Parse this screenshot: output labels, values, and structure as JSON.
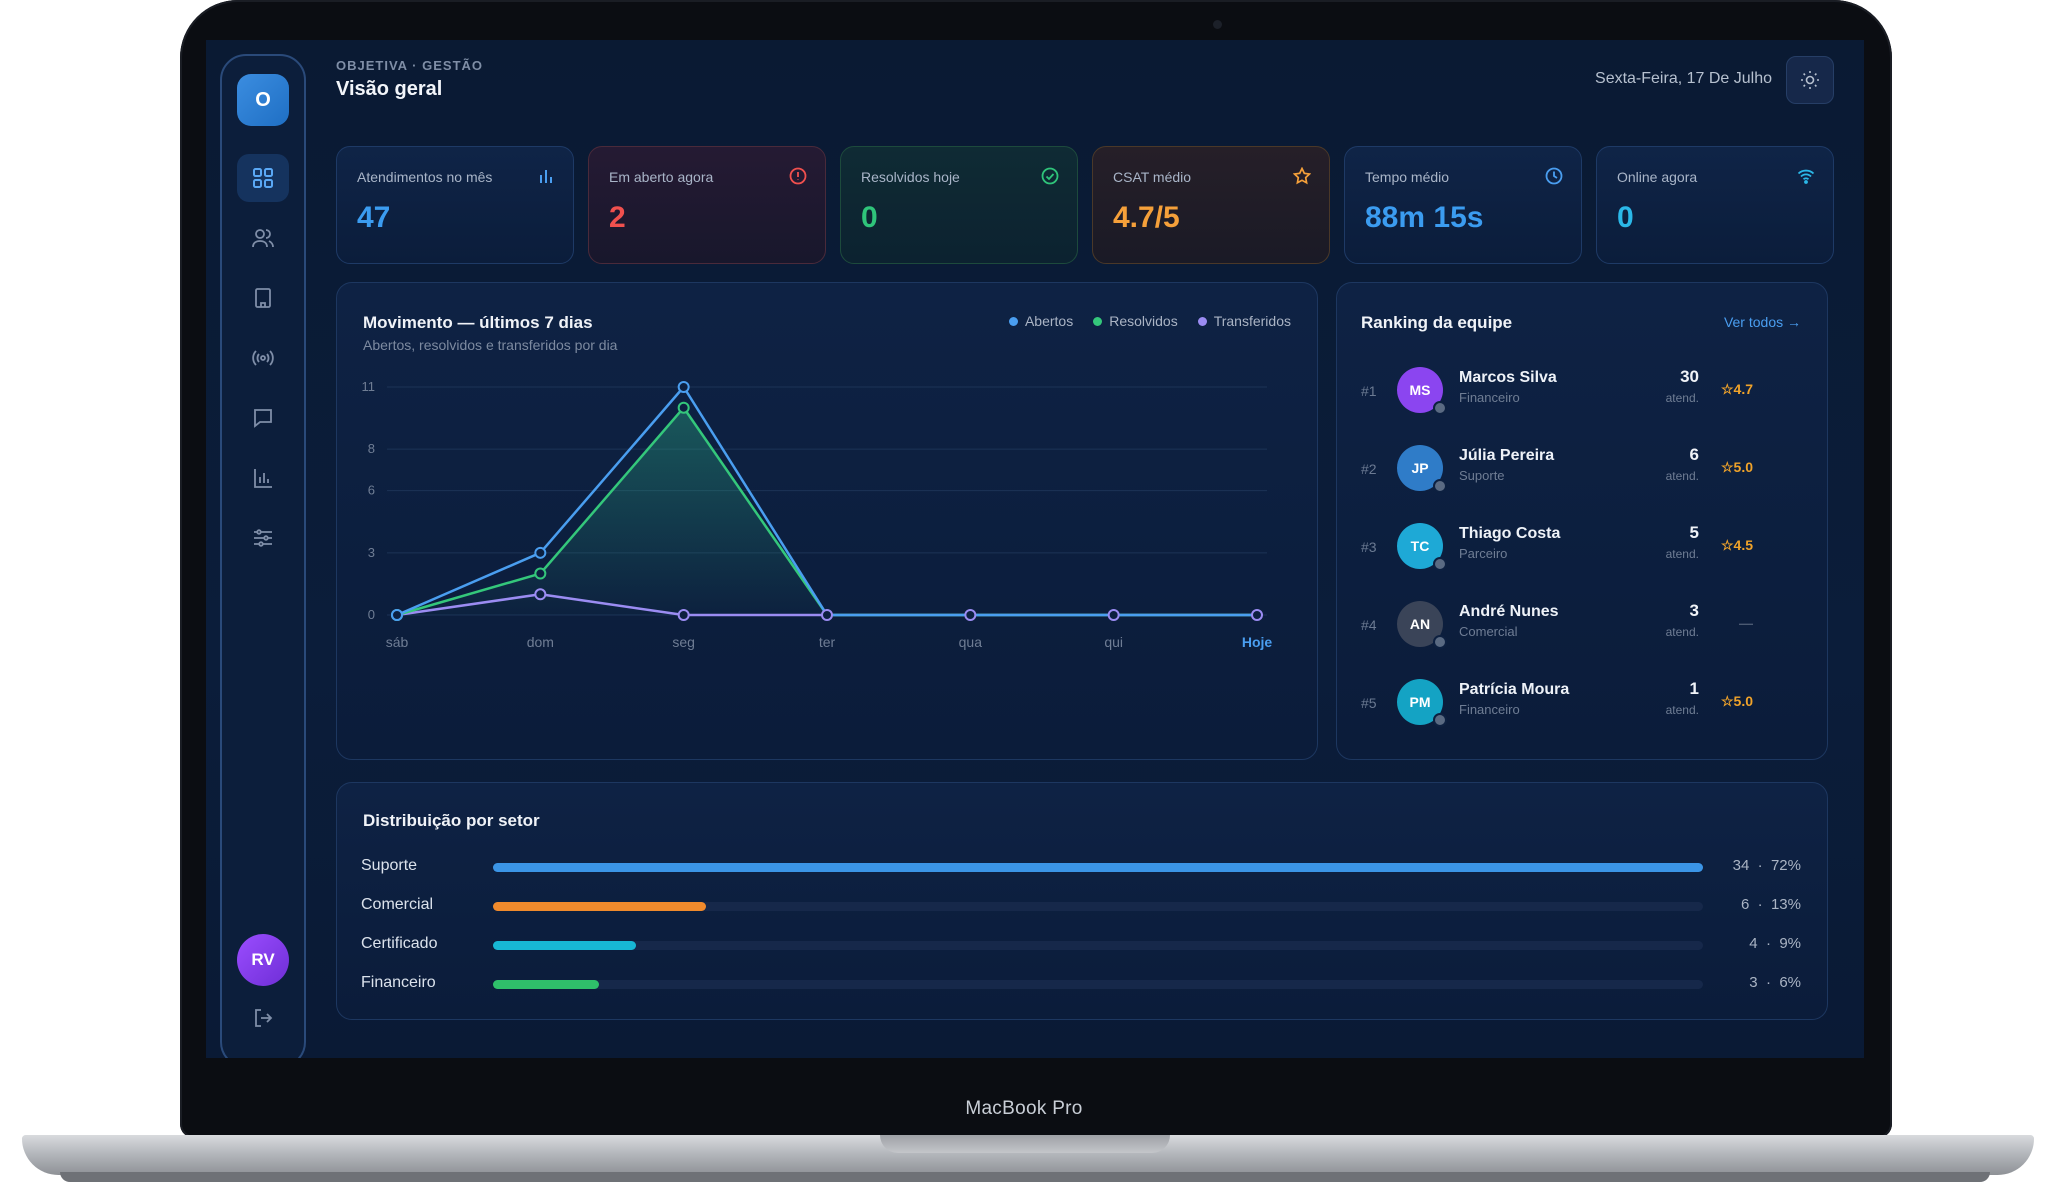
{
  "device": {
    "label": "MacBook Pro"
  },
  "header": {
    "eyebrow": "OBJETIVA · GESTÃO",
    "title": "Visão geral",
    "date": "Sexta-Feira, 17 De Julho"
  },
  "sidebar": {
    "logo": "O",
    "items": [
      {
        "name": "dashboard",
        "icon": "grid-icon",
        "active": true
      },
      {
        "name": "users",
        "icon": "users-icon",
        "active": false
      },
      {
        "name": "building",
        "icon": "building-icon",
        "active": false
      },
      {
        "name": "broadcast",
        "icon": "broadcast-icon",
        "active": false
      },
      {
        "name": "messages",
        "icon": "chat-icon",
        "active": false
      },
      {
        "name": "reports",
        "icon": "bar-chart-icon",
        "active": false
      },
      {
        "name": "settings",
        "icon": "sliders-icon",
        "active": false
      }
    ],
    "avatar": "RV",
    "logout_icon": "logout-icon"
  },
  "stats": [
    {
      "label": "Atendimentos no mês",
      "value": "47",
      "color": "#3b9cf0",
      "icon": "bar-chart-icon"
    },
    {
      "label": "Em aberto agora",
      "value": "2",
      "color": "#f0504e",
      "icon": "alert-circle-icon"
    },
    {
      "label": "Resolvidos hoje",
      "value": "0",
      "color": "#2fc47a",
      "icon": "check-circle-icon"
    },
    {
      "label": "CSAT médio",
      "value": "4.7/5",
      "color": "#f5a03a",
      "icon": "star-icon"
    },
    {
      "label": "Tempo médio",
      "value": "88m 15s",
      "color": "#3b9cf0",
      "icon": "clock-icon"
    },
    {
      "label": "Online agora",
      "value": "0",
      "color": "#2bb8e8",
      "icon": "wifi-icon"
    }
  ],
  "chart_panel": {
    "title": "Movimento — últimos 7 dias",
    "subtitle": "Abertos, resolvidos e transferidos por dia"
  },
  "chart_data": {
    "type": "line",
    "categories": [
      "sáb",
      "dom",
      "seg",
      "ter",
      "qua",
      "qui",
      "Hoje"
    ],
    "y_ticks": [
      "0",
      "3",
      "6",
      "8",
      "11"
    ],
    "ylim": [
      0,
      11
    ],
    "grid": true,
    "legend_position": "top-right",
    "series": [
      {
        "name": "Abertos",
        "color": "#4a9ef0",
        "values": [
          0,
          3,
          11,
          0,
          0,
          0,
          0
        ]
      },
      {
        "name": "Resolvidos",
        "color": "#34c77b",
        "values": [
          0,
          2,
          10,
          0,
          0,
          0,
          0
        ]
      },
      {
        "name": "Transferidos",
        "color": "#9b8cf2",
        "values": [
          0,
          1,
          0,
          0,
          0,
          0,
          0
        ]
      }
    ]
  },
  "ranking": {
    "title": "Ranking da equipe",
    "view_all": "Ver todos →",
    "rows": [
      {
        "pos": "#1",
        "initials": "MS",
        "name": "Marcos Silva",
        "dept": "Financeiro",
        "count": "30",
        "unit": "atend.",
        "rating": "☆4.7",
        "color": "#8b45f0"
      },
      {
        "pos": "#2",
        "initials": "JP",
        "name": "Júlia Pereira",
        "dept": "Suporte",
        "count": "6",
        "unit": "atend.",
        "rating": "☆5.0",
        "color": "#2f7cc8"
      },
      {
        "pos": "#3",
        "initials": "TC",
        "name": "Thiago Costa",
        "dept": "Parceiro",
        "count": "5",
        "unit": "atend.",
        "rating": "☆4.5",
        "color": "#1ea9d6"
      },
      {
        "pos": "#4",
        "initials": "AN",
        "name": "André Nunes",
        "dept": "Comercial",
        "count": "3",
        "unit": "atend.",
        "rating": "—",
        "color": "#3a4458"
      },
      {
        "pos": "#5",
        "initials": "PM",
        "name": "Patrícia Moura",
        "dept": "Financeiro",
        "count": "1",
        "unit": "atend.",
        "rating": "☆5.0",
        "color": "#14a3c4"
      }
    ]
  },
  "distribution": {
    "title": "Distribuição por setor",
    "rows": [
      {
        "name": "Suporte",
        "count": "34",
        "percent": "72%",
        "fraction": 1.0,
        "color": "#3b95e6"
      },
      {
        "name": "Comercial",
        "count": "6",
        "percent": "13%",
        "fraction": 0.176,
        "color": "#f08a2c"
      },
      {
        "name": "Certificado",
        "count": "4",
        "percent": "9%",
        "fraction": 0.118,
        "color": "#17b7d4"
      },
      {
        "name": "Financeiro",
        "count": "3",
        "percent": "6%",
        "fraction": 0.088,
        "color": "#2fbf6a"
      }
    ]
  }
}
